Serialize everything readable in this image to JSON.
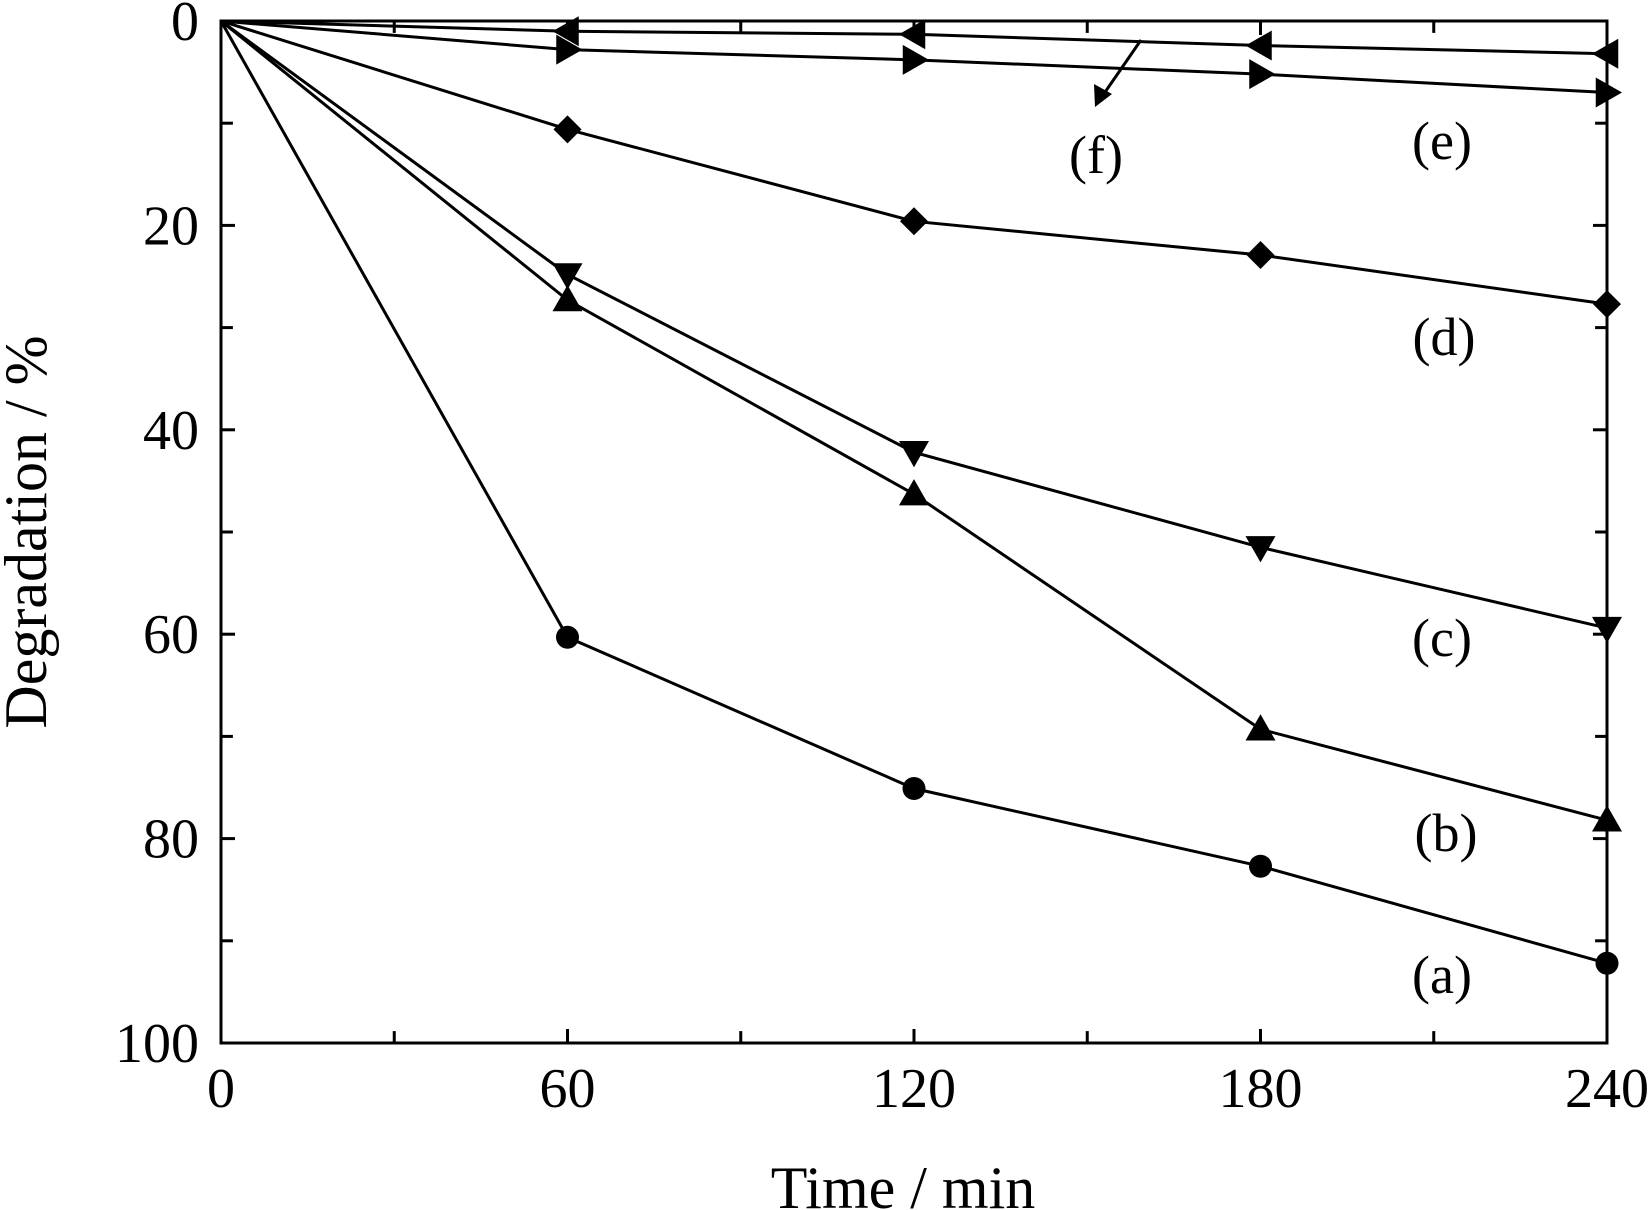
{
  "chart_data": {
    "type": "line",
    "title": "",
    "xlabel": "Time / min",
    "ylabel": "Degradation / %",
    "xlim": [
      0,
      240
    ],
    "ylim": [
      0,
      100
    ],
    "y_axis_inverted": true,
    "x_ticks": [
      0,
      60,
      120,
      180,
      240
    ],
    "x_tick_labels": [
      "0",
      "60",
      "120",
      "180",
      "240"
    ],
    "y_ticks": [
      0,
      20,
      40,
      60,
      80,
      100
    ],
    "y_tick_labels": [
      "0",
      "20",
      "40",
      "60",
      "80",
      "100"
    ],
    "grid": false,
    "x": [
      0,
      60,
      120,
      180,
      240
    ],
    "series": [
      {
        "name": "(a)",
        "marker": "circle",
        "values": [
          0,
          60.3,
          75.1,
          82.7,
          92.2
        ]
      },
      {
        "name": "(b)",
        "marker": "triangle-up",
        "values": [
          0,
          27.3,
          46.3,
          69.3,
          78.2
        ]
      },
      {
        "name": "(c)",
        "marker": "triangle-down",
        "values": [
          0,
          24.8,
          42.2,
          51.5,
          59.4
        ]
      },
      {
        "name": "(d)",
        "marker": "diamond",
        "values": [
          0,
          10.6,
          19.6,
          22.9,
          27.7
        ]
      },
      {
        "name": "(e)",
        "marker": "triangle-left",
        "values": [
          0,
          1.0,
          1.3,
          2.4,
          3.2
        ]
      },
      {
        "name": "(f)",
        "marker": "triangle-right",
        "values": [
          0,
          2.8,
          3.8,
          5.2,
          7.0
        ]
      }
    ]
  }
}
